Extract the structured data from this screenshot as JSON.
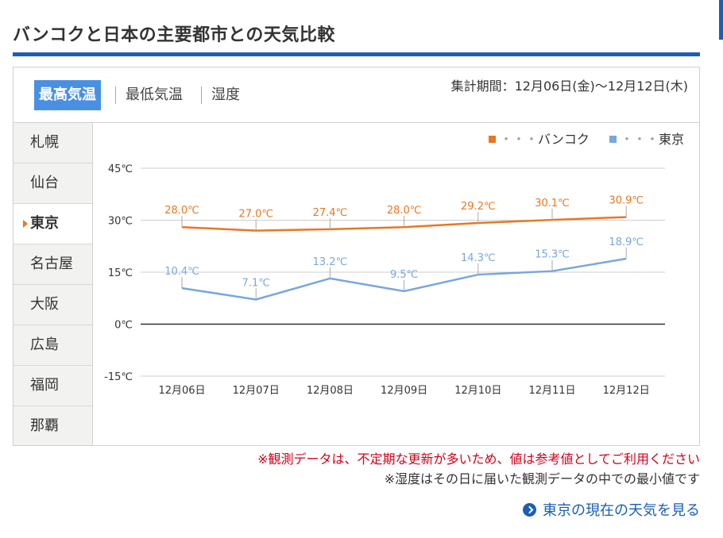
{
  "header": {
    "title": "バンコクと日本の主要都市との天気比較"
  },
  "tabs": [
    {
      "label": "最高気温",
      "active": true
    },
    {
      "label": "最低気温",
      "active": false
    },
    {
      "label": "湿度",
      "active": false
    }
  ],
  "period": "集計期間：12月06日(金)〜12月12日(木)",
  "cities": [
    {
      "label": "札幌",
      "active": false
    },
    {
      "label": "仙台",
      "active": false
    },
    {
      "label": "東京",
      "active": true
    },
    {
      "label": "名古屋",
      "active": false
    },
    {
      "label": "大阪",
      "active": false
    },
    {
      "label": "広島",
      "active": false
    },
    {
      "label": "福岡",
      "active": false
    },
    {
      "label": "那覇",
      "active": false
    }
  ],
  "chart_data": {
    "type": "line",
    "categories": [
      "12月06日",
      "12月07日",
      "12月08日",
      "12月09日",
      "12月10日",
      "12月11日",
      "12月12日"
    ],
    "series": [
      {
        "name": "バンコク",
        "color": "#e87722",
        "values": [
          28.0,
          27.0,
          27.4,
          28.0,
          29.2,
          30.1,
          30.9
        ]
      },
      {
        "name": "東京",
        "color": "#78a6dd",
        "values": [
          10.4,
          7.1,
          13.2,
          9.5,
          14.3,
          15.3,
          18.9
        ]
      }
    ],
    "y_ticks": [
      45,
      30,
      15,
      0,
      -15
    ],
    "ylim": [
      -15,
      45
    ],
    "unit": "℃",
    "legend_dots": "・・・",
    "legend_position": "top-right",
    "grid": true
  },
  "notes": {
    "warning": "※観測データは、不定期な更新が多いため、値は参考値としてご利用ください",
    "humidity": "※湿度はその日に届いた観測データの中での最小値です"
  },
  "link": {
    "label": "東京の現在の天気を見る"
  }
}
